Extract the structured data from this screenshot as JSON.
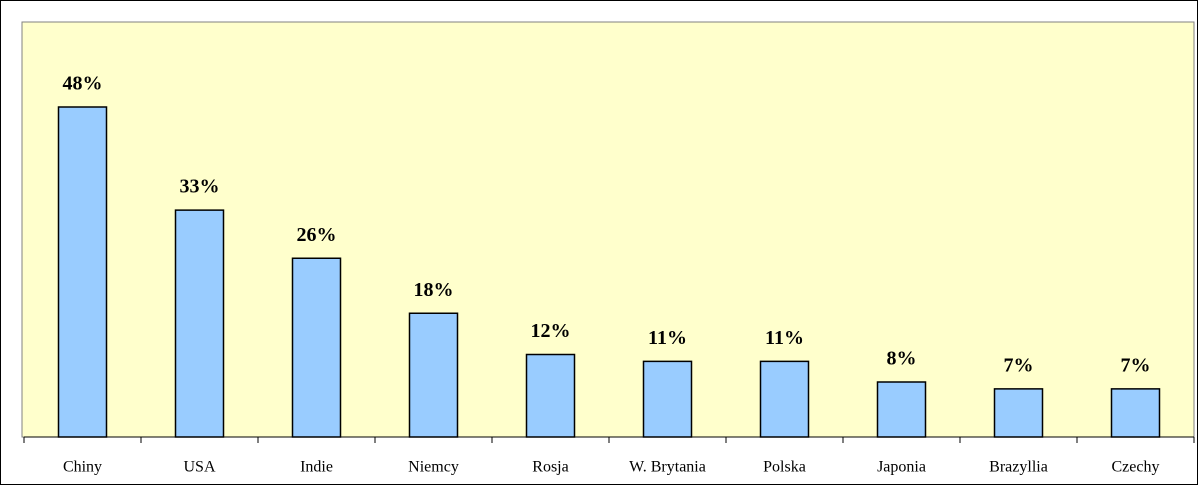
{
  "chart_data": {
    "type": "bar",
    "categories": [
      "Chiny",
      "USA",
      "Indie",
      "Niemcy",
      "Rosja",
      "W. Brytania",
      "Polska",
      "Japonia",
      "Brazyllia",
      "Czechy"
    ],
    "values": [
      48,
      33,
      26,
      18,
      12,
      11,
      11,
      8,
      7,
      7
    ],
    "value_labels": [
      "48%",
      "33%",
      "26%",
      "18%",
      "12%",
      "11%",
      "11%",
      "8%",
      "7%",
      "7%"
    ],
    "color": "#99ccff",
    "background": "#ffffcc"
  }
}
